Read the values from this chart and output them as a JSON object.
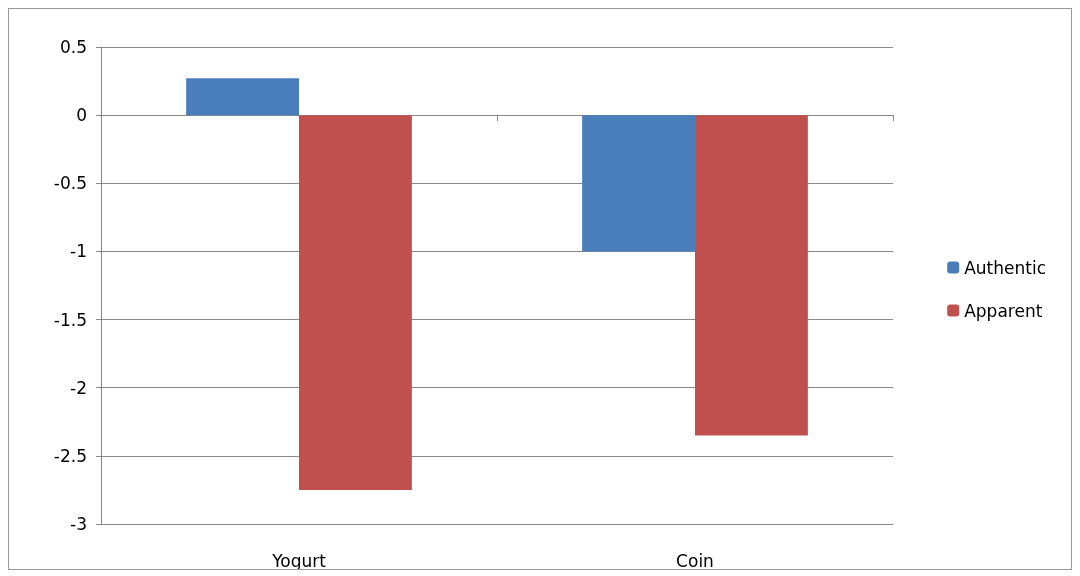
{
  "chart_data": {
    "type": "bar",
    "categories": [
      "Yogurt",
      "Coin"
    ],
    "series": [
      {
        "name": "Authentic",
        "color": "#4a7ebb",
        "values": [
          0.27,
          -1.0
        ]
      },
      {
        "name": "Apparent",
        "color": "#c0504d",
        "values": [
          -2.75,
          -2.35
        ]
      }
    ],
    "ylim": [
      -3,
      0.5
    ],
    "yticks": [
      -3,
      -2.5,
      -2,
      -1.5,
      -1,
      -0.5,
      0,
      0.5
    ],
    "grid": "y",
    "legend": "right"
  }
}
